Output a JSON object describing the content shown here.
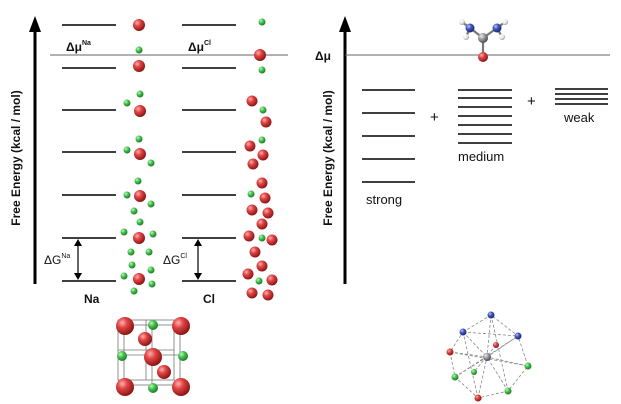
{
  "left_panel": {
    "y_axis_label": "Free Energy (kcal / mol)",
    "delta_mu_na": {
      "base": "Δμ",
      "sup": "Na"
    },
    "delta_mu_cl": {
      "base": "Δμ",
      "sup": "Cl"
    },
    "delta_g_na": {
      "base": "ΔG",
      "sup": "Na"
    },
    "delta_g_cl": {
      "base": "ΔG",
      "sup": "Cl"
    },
    "na_label": "Na",
    "cl_label": "Cl"
  },
  "right_panel": {
    "y_axis_label": "Free Energy (kcal / mol)",
    "delta_mu": "Δμ",
    "plus_1": "+",
    "plus_2": "+",
    "strong_label": "strong",
    "medium_label": "medium",
    "weak_label": "weak"
  },
  "colors": {
    "sodium": "#d93a3a",
    "chlorine": "#3fb84a",
    "carbon": "#8d8d94",
    "nitrogen": "#3f54b8",
    "oxygen": "#d93a3a",
    "hydrogen": "#e6e6e6"
  }
}
